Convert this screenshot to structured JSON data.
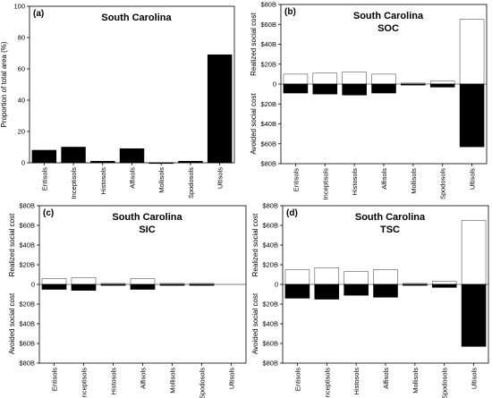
{
  "chart_data": [
    {
      "panel": "(a)",
      "type": "bar",
      "title": "South Carolina",
      "subtitle": "",
      "ylabel": "Proportion of total area (%)",
      "xlabel": "",
      "ylim": [
        0,
        100
      ],
      "yticks": [
        0,
        20,
        40,
        60,
        80,
        100
      ],
      "ytick_labels": [
        "0",
        "20",
        "40",
        "60",
        "80",
        "100"
      ],
      "categories": [
        "Entisols",
        "Inceptisols",
        "Histosols",
        "Alfisols",
        "Mollisols",
        "Spodosols",
        "Ultisols"
      ],
      "values": [
        8,
        10,
        1,
        9,
        0,
        1,
        69
      ]
    },
    {
      "panel": "(b)",
      "type": "bar",
      "title": "South Carolina",
      "subtitle": "SOC",
      "ylabel_top": "Realized social cost",
      "ylabel_bottom": "Avoided social cost",
      "ylim": [
        -80,
        80
      ],
      "yticks": [
        -80,
        -60,
        -40,
        -20,
        0,
        20,
        40,
        60,
        80
      ],
      "ytick_labels": [
        "$80B",
        "$60B",
        "$40B",
        "$20B",
        "0",
        "$20B",
        "$40B",
        "$60B",
        "$80B"
      ],
      "categories": [
        "Entisols",
        "Inceptisols",
        "Histosols",
        "Alfisols",
        "Mollisols",
        "Spodosols",
        "Ultisols"
      ],
      "series": [
        {
          "values": [
            10,
            11,
            12,
            10,
            1,
            3,
            65
          ],
          "color": "#ffffff"
        },
        {
          "values": [
            -9,
            -10,
            -11,
            -9,
            -1,
            -3,
            -63
          ],
          "color": "#000000"
        }
      ]
    },
    {
      "panel": "(c)",
      "type": "bar",
      "title": "South Carolina",
      "subtitle": "SIC",
      "ylabel_top": "Realized social cost",
      "ylabel_bottom": "Avoided social cost",
      "ylim": [
        -80,
        80
      ],
      "yticks": [
        -80,
        -60,
        -40,
        -20,
        0,
        20,
        40,
        60,
        80
      ],
      "ytick_labels": [
        "$80B",
        "$60B",
        "$40B",
        "$20B",
        "0",
        "$20B",
        "$40B",
        "$60B",
        "$80B"
      ],
      "categories": [
        "Entisols",
        "Inceptisols",
        "Histosols",
        "Alfisols",
        "Mollisols",
        "Spodosols",
        "Ultisols"
      ],
      "series": [
        {
          "values": [
            6,
            7,
            1,
            6,
            1,
            1,
            0
          ],
          "color": "#ffffff"
        },
        {
          "values": [
            -5,
            -6,
            -1,
            -5,
            -1,
            -1,
            0
          ],
          "color": "#000000"
        }
      ]
    },
    {
      "panel": "(d)",
      "type": "bar",
      "title": "South Carolina",
      "subtitle": "TSC",
      "ylabel_top": "Realized social cost",
      "ylabel_bottom": "Avoided social cost",
      "ylim": [
        -80,
        80
      ],
      "yticks": [
        -80,
        -60,
        -40,
        -20,
        0,
        20,
        40,
        60,
        80
      ],
      "ytick_labels": [
        "$80B",
        "$60B",
        "$40B",
        "$20B",
        "0",
        "$20B",
        "$40B",
        "$60B",
        "$80B"
      ],
      "categories": [
        "Entisols",
        "Inceptisols",
        "Histosols",
        "Alfisols",
        "Mollisols",
        "Spodosols",
        "Ultisols"
      ],
      "series": [
        {
          "values": [
            15,
            17,
            13,
            15,
            1,
            3,
            65
          ],
          "color": "#ffffff"
        },
        {
          "values": [
            -14,
            -15,
            -11,
            -13,
            -1,
            -3,
            -63
          ],
          "color": "#000000"
        }
      ]
    }
  ]
}
